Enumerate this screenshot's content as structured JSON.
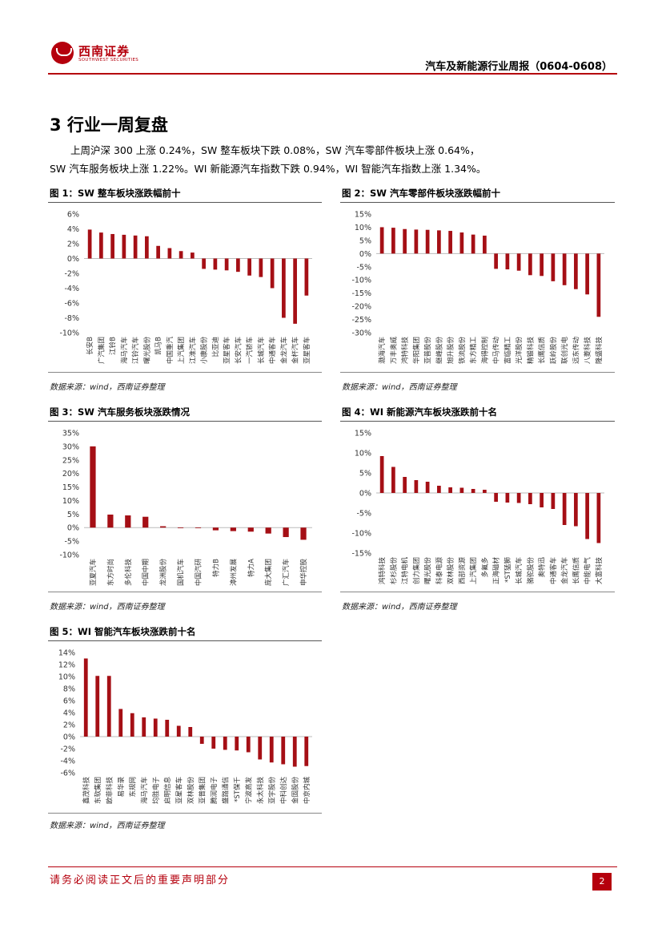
{
  "header": {
    "logo_cn": "西南证券",
    "logo_en": "SOUTHWEST SECURITIES",
    "report_title": "汽车及新能源行业周报（0604-0608）"
  },
  "section": {
    "title": "3 行业一周复盘",
    "para_line1": "上周沪深 300 上涨 0.24%，SW 整车板块下跌 0.08%，SW 汽车零部件板块上涨 0.64%，",
    "para_line2": "SW 汽车服务板块上涨 1.22%。WI 新能源汽车指数下跌 0.94%，WI 智能汽车指数上涨 1.34%。"
  },
  "colors": {
    "bar": "#a50f15",
    "brand": "#b5000d"
  },
  "figures": [
    {
      "title": "图 1：SW 整车板块涨跌幅前十",
      "source": "数据来源：wind，西南证券整理",
      "chart_data": {
        "type": "bar",
        "categories": [
          "长安B",
          "广汽集团",
          "江铃B",
          "海马汽车",
          "江铃汽车",
          "曙光股份",
          "凯马B",
          "中国重汽",
          "上汽集团",
          "江淮汽车",
          "小康股份",
          "比亚迪",
          "亚星客车",
          "长安汽车",
          "一汽轿车",
          "长城汽车",
          "中通客车",
          "金龙汽车",
          "金杯汽车",
          "亚星客车"
        ],
        "values": [
          3.9,
          3.5,
          3.3,
          3.2,
          3.1,
          3.0,
          1.7,
          1.4,
          1.0,
          0.8,
          -1.4,
          -1.5,
          -1.6,
          -1.8,
          -2.3,
          -2.5,
          -4.0,
          -8.0,
          -8.8,
          -5.0
        ],
        "ylim": [
          -10,
          6
        ],
        "ticks": [
          6,
          4,
          2,
          0,
          -2,
          -4,
          -6,
          -8,
          -10
        ]
      }
    },
    {
      "title": "图 2：SW 汽车零部件板块涨跌幅前十",
      "source": "数据来源：wind，西南证券整理",
      "chart_data": {
        "type": "bar",
        "categories": [
          "渤海汽车",
          "万丰奥威",
          "鸿特科技",
          "华阳集团",
          "亚普股份",
          "继峰股份",
          "旭升股份",
          "铁流股份",
          "东方精工",
          "海得控制",
          "中马传动",
          "富临精工",
          "光洋股份",
          "精锻科技",
          "长鹰信质",
          "跃岭股份",
          "联创光电",
          "远东传动",
          "八菱科技",
          "隆盛科技"
        ],
        "values": [
          10.0,
          9.8,
          9.3,
          9.1,
          9.0,
          8.8,
          8.6,
          8.0,
          7.2,
          6.8,
          -5.8,
          -6.0,
          -6.5,
          -8.2,
          -8.5,
          -10.5,
          -12.0,
          -13.5,
          -15.5,
          -24.0
        ],
        "ylim": [
          -30,
          15
        ],
        "ticks": [
          15,
          10,
          5,
          0,
          -5,
          -10,
          -15,
          -20,
          -25,
          -30
        ]
      }
    },
    {
      "title": "图 3：SW 汽车服务板块涨跌情况",
      "source": "数据来源：wind，西南证券整理",
      "chart_data": {
        "type": "bar",
        "categories": [
          "亚夏汽车",
          "东方时尚",
          "多伦科技",
          "中国中期",
          "龙洲股份",
          "国机汽车",
          "中国汽研",
          "特力B",
          "漳州发展",
          "特力A",
          "庞大集团",
          "广汇汽车",
          "申华控股"
        ],
        "values": [
          30.0,
          4.8,
          4.5,
          4.0,
          0.5,
          -0.1,
          -0.2,
          -1.0,
          -1.3,
          -1.5,
          -2.2,
          -3.5,
          -4.5
        ],
        "ylim": [
          -10,
          35
        ],
        "ticks": [
          35,
          30,
          25,
          20,
          15,
          10,
          5,
          0,
          -5,
          -10
        ]
      }
    },
    {
      "title": "图 4：WI 新能源汽车板块涨跌前十名",
      "source": "数据来源：wind，西南证券整理",
      "chart_data": {
        "type": "bar",
        "categories": [
          "鸿特科技",
          "杉杉股份",
          "江特电机",
          "创力集团",
          "曙光股份",
          "科泰电源",
          "双林股份",
          "西部资源",
          "上汽集团",
          "多氟多",
          "正海磁材",
          "*ST猛狮",
          "长城汽车",
          "骆驼股份",
          "奥特迅",
          "中通客车",
          "金龙汽车",
          "长鹰信质",
          "中能电气",
          "大富科技"
        ],
        "values": [
          9.2,
          6.5,
          4.0,
          3.2,
          2.8,
          1.8,
          1.4,
          1.3,
          1.0,
          0.8,
          -2.2,
          -2.4,
          -2.5,
          -2.8,
          -3.6,
          -4.0,
          -8.0,
          -8.3,
          -11.5,
          -12.5
        ],
        "ylim": [
          -15,
          15
        ],
        "ticks": [
          15,
          10,
          5,
          0,
          -5,
          -10,
          -15
        ]
      }
    },
    {
      "title": "图 5：WI 智能汽车板块涨跌前十名",
      "source": "数据来源：wind，西南证券整理",
      "chart_data": {
        "type": "bar",
        "categories": [
          "鑫茂科技",
          "东软集团",
          "欧菲科技",
          "易华录",
          "东规网",
          "海马汽车",
          "均胜电子",
          "启明信息",
          "亚星客车",
          "双林股份",
          "亚普集团",
          "腾润电子",
          "盛路通信",
          "*ST保千",
          "宁波高发",
          "永太科技",
          "亚宇股份",
          "中科创达",
          "金固股份",
          "中京内城"
        ],
        "values": [
          13.0,
          10.1,
          10.1,
          4.6,
          3.9,
          3.2,
          3.0,
          2.8,
          1.8,
          1.6,
          -1.2,
          -2.0,
          -2.2,
          -2.3,
          -2.6,
          -3.8,
          -4.3,
          -4.6,
          -5.0,
          -4.9
        ],
        "ylim": [
          -6,
          14
        ],
        "ticks": [
          14,
          12,
          10,
          8,
          6,
          4,
          2,
          0,
          -2,
          -4,
          -6
        ]
      }
    }
  ],
  "footer": {
    "disclaimer": "请务必阅读正文后的重要声明部分",
    "page_number": "2"
  }
}
